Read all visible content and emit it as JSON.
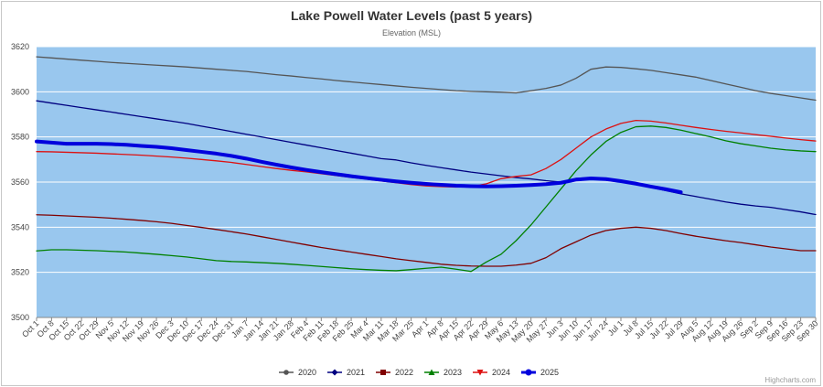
{
  "chart_data": {
    "type": "line",
    "title": "Lake Powell Water Levels (past 5 years)",
    "subtitle": "Elevation (MSL)",
    "xlabel": "",
    "ylabel": "",
    "ylim": [
      3500,
      3620
    ],
    "yticks": [
      3500,
      3520,
      3540,
      3560,
      3580,
      3600,
      3620
    ],
    "grid": true,
    "legend_position": "bottom-center",
    "plot_background": "#99c7ee",
    "categories": [
      "Oct 1",
      "Oct 8",
      "Oct 15",
      "Oct 22",
      "Oct 29",
      "Nov 5",
      "Nov 12",
      "Nov 19",
      "Nov 26",
      "Dec 3",
      "Dec 10",
      "Dec 17",
      "Dec 24",
      "Dec 31",
      "Jan 7",
      "Jan 14",
      "Jan 21",
      "Jan 28",
      "Feb 4",
      "Feb 11",
      "Feb 18",
      "Feb 25",
      "Mar 4",
      "Mar 11",
      "Mar 18",
      "Mar 25",
      "Apr 1",
      "Apr 8",
      "Apr 15",
      "Apr 22",
      "Apr 29",
      "May 6",
      "May 13",
      "May 20",
      "May 27",
      "Jun 3",
      "Jun 10",
      "Jun 17",
      "Jun 24",
      "Jul 1",
      "Jul 8",
      "Jul 15",
      "Jul 22",
      "Jul 29",
      "Aug 5",
      "Aug 12",
      "Aug 19",
      "Aug 26",
      "Sep 2",
      "Sep 9",
      "Sep 16",
      "Sep 23",
      "Sep 30"
    ],
    "series": [
      {
        "name": "2020",
        "color": "#555555",
        "width": 1.3,
        "marker": "circle",
        "values": [
          3615.5,
          3615,
          3614.5,
          3614,
          3613.5,
          3613,
          3612.6,
          3612.2,
          3611.8,
          3611.4,
          3611,
          3610.5,
          3610,
          3609.5,
          3609,
          3608.3,
          3607.6,
          3607,
          3606.3,
          3605.7,
          3605,
          3604.4,
          3603.8,
          3603.2,
          3602.6,
          3602,
          3601.5,
          3601,
          3600.5,
          3600.2,
          3600,
          3599.8,
          3599.5,
          3600.5,
          3601.5,
          3603,
          3606,
          3610,
          3611,
          3610.8,
          3610.2,
          3609.5,
          3608.5,
          3607.5,
          3606.5,
          3605,
          3603.5,
          3602,
          3600.5,
          3599.3,
          3598.3,
          3597.3,
          3596.3
        ]
      },
      {
        "name": "2021",
        "color": "#000080",
        "width": 1.3,
        "marker": "diamond",
        "values": [
          3596,
          3595,
          3594,
          3593,
          3592,
          3591,
          3590,
          3589,
          3588,
          3587,
          3586,
          3584.8,
          3583.6,
          3582.4,
          3581.2,
          3580,
          3578.8,
          3577.6,
          3576.4,
          3575.2,
          3574,
          3572.8,
          3571.6,
          3570.4,
          3569.8,
          3568.5,
          3567.4,
          3566.4,
          3565.4,
          3564.4,
          3563.6,
          3562.8,
          3562,
          3561.4,
          3560.6,
          3560,
          3561.6,
          3561.6,
          3561.1,
          3560.1,
          3559,
          3557.6,
          3556.2,
          3554.8,
          3553.6,
          3552.4,
          3551.2,
          3550.2,
          3549.4,
          3548.8,
          3547.8,
          3546.8,
          3545.6
        ]
      },
      {
        "name": "2022",
        "color": "#800000",
        "width": 1.3,
        "marker": "square",
        "values": [
          3545.5,
          3545.3,
          3545,
          3544.7,
          3544.4,
          3544,
          3543.5,
          3543,
          3542.4,
          3541.7,
          3540.8,
          3539.9,
          3539,
          3538,
          3537,
          3535.8,
          3534.6,
          3533.4,
          3532.2,
          3531,
          3530,
          3529,
          3528,
          3527,
          3526,
          3525.2,
          3524.4,
          3523.6,
          3523.1,
          3522.8,
          3522.7,
          3522.7,
          3523.2,
          3524,
          3526.5,
          3530.5,
          3533.5,
          3536.5,
          3538.5,
          3539.5,
          3540,
          3539.5,
          3538.5,
          3537.2,
          3536,
          3535,
          3534,
          3533.2,
          3532.2,
          3531.2,
          3530.4,
          3529.6,
          3529.6
        ]
      },
      {
        "name": "2023",
        "color": "#008000",
        "width": 1.3,
        "marker": "triangle",
        "values": [
          3529.5,
          3530,
          3530,
          3529.8,
          3529.6,
          3529.3,
          3529,
          3528.5,
          3528,
          3527.4,
          3526.8,
          3526,
          3525.2,
          3524.8,
          3524.6,
          3524.3,
          3524,
          3523.6,
          3523.1,
          3522.6,
          3522.1,
          3521.6,
          3521.2,
          3520.9,
          3520.7,
          3521.2,
          3521.8,
          3522.3,
          3521.4,
          3520.4,
          3524.5,
          3528,
          3534,
          3541,
          3549,
          3557,
          3565,
          3572,
          3578,
          3582,
          3584.5,
          3584.8,
          3584.2,
          3583,
          3581.5,
          3580,
          3578.3,
          3577,
          3576,
          3575,
          3574.3,
          3573.8,
          3573.5
        ]
      },
      {
        "name": "2024",
        "color": "#dd1111",
        "width": 1.3,
        "marker": "triangle-down",
        "values": [
          3573.5,
          3573.4,
          3573.2,
          3573,
          3572.8,
          3572.5,
          3572.2,
          3571.9,
          3571.5,
          3571.1,
          3570.6,
          3570,
          3569.4,
          3568.7,
          3567.8,
          3566.9,
          3566,
          3565.2,
          3564.5,
          3563.7,
          3562.9,
          3562.1,
          3561.3,
          3560.5,
          3559.7,
          3558.9,
          3558.3,
          3558,
          3557.8,
          3558,
          3559.2,
          3561.5,
          3562.5,
          3563.2,
          3566,
          3570,
          3575,
          3580,
          3583.5,
          3586,
          3587.3,
          3587,
          3586.2,
          3585.2,
          3584.2,
          3583.3,
          3582.5,
          3581.8,
          3581,
          3580.3,
          3579.5,
          3578.8,
          3578.2
        ]
      },
      {
        "name": "2025",
        "color": "#0000dd",
        "width": 4,
        "marker": "circle",
        "values": [
          3578,
          3577.5,
          3577,
          3577,
          3577,
          3576.8,
          3576.5,
          3576,
          3575.6,
          3575,
          3574.2,
          3573.4,
          3572.6,
          3571.6,
          3570.4,
          3569,
          3567.7,
          3566.5,
          3565.4,
          3564.4,
          3563.5,
          3562.6,
          3561.8,
          3561,
          3560.3,
          3559.7,
          3559.2,
          3558.8,
          3558.4,
          3558.2,
          3558.1,
          3558.2,
          3558.4,
          3558.7,
          3559.1,
          3559.7,
          3561.1,
          3561.6,
          3561.3,
          3560.4,
          3559.3,
          3558,
          3556.8,
          3555.5,
          null,
          null,
          null,
          null,
          null,
          null,
          null,
          null,
          null
        ]
      }
    ]
  },
  "credit": "Highcharts.com"
}
